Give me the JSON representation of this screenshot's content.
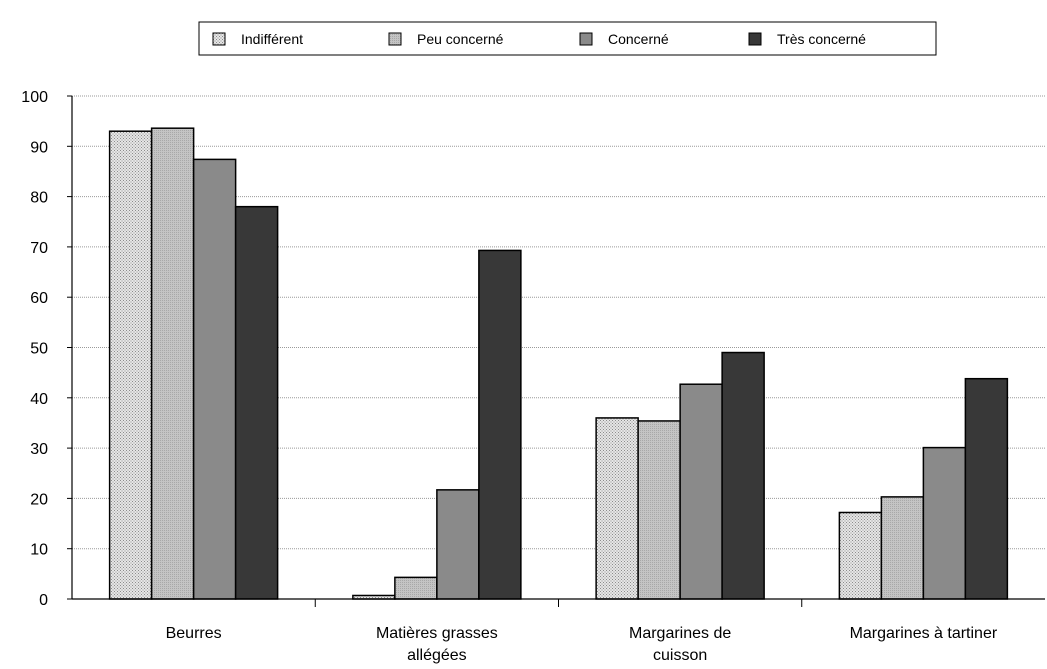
{
  "chart_data": {
    "type": "bar",
    "categories": [
      [
        "Beurres"
      ],
      [
        "Matières grasses",
        "allégées"
      ],
      [
        "Margarines de",
        "cuisson"
      ],
      [
        "Margarines à tartiner"
      ]
    ],
    "series": [
      {
        "name": "Indifférent",
        "values": [
          93,
          0.7,
          36,
          17.2
        ],
        "color": "#d4d4d4",
        "pattern": "dots"
      },
      {
        "name": "Peu concerné",
        "values": [
          93.6,
          4.3,
          35.4,
          20.3
        ],
        "color": "#bdbdbd",
        "pattern": "fine"
      },
      {
        "name": "Concerné",
        "values": [
          87.4,
          21.7,
          42.7,
          30.1
        ],
        "color": "#8a8a8a",
        "pattern": "solid"
      },
      {
        "name": "Très concerné",
        "values": [
          78,
          69.3,
          49,
          43.8
        ],
        "color": "#383838",
        "pattern": "solid"
      }
    ],
    "title": "",
    "xlabel": "",
    "ylabel": "",
    "ylim": [
      0,
      100
    ],
    "yticks": [
      0,
      10,
      20,
      30,
      40,
      50,
      60,
      70,
      80,
      90,
      100
    ],
    "grid": "horizontal",
    "legend": "top-center"
  }
}
